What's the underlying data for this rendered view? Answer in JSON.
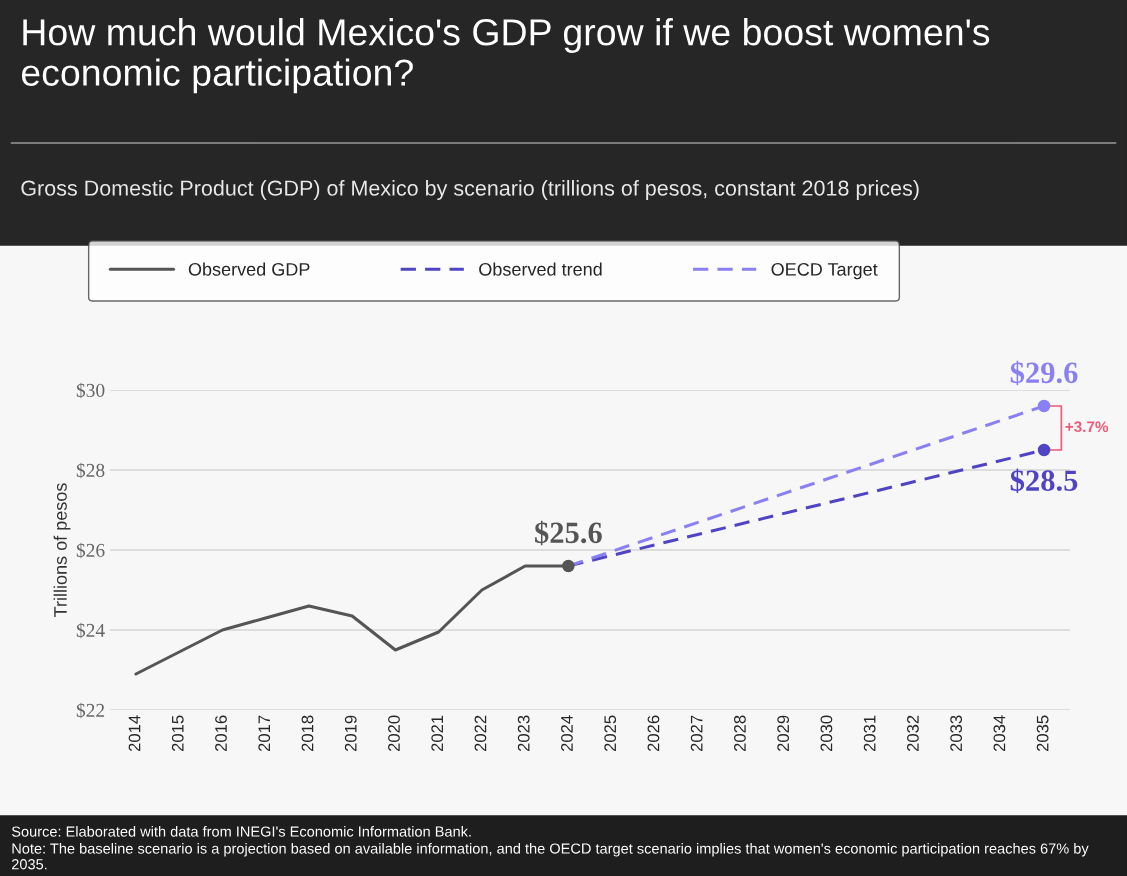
{
  "chart_data": {
    "type": "line",
    "title": "How much would Mexico's GDP grow if we boost women's economic participation?",
    "subtitle": "Gross Domestic Product (GDP) of Mexico by scenario (trillions of pesos, constant 2018 prices)",
    "ylabel": "Trillions of pesos",
    "series": [
      {
        "name": "Observed GDP",
        "color": "#555555",
        "line_style": "solid",
        "x": [
          2014,
          2015,
          2016,
          2017,
          2018,
          2019,
          2020,
          2021,
          2022,
          2023,
          2024
        ],
        "values": [
          22.9,
          23.45,
          24.0,
          24.3,
          24.6,
          24.35,
          23.5,
          23.95,
          25.0,
          25.6,
          25.6
        ],
        "value_labels": [
          null,
          null,
          null,
          null,
          null,
          null,
          null,
          null,
          null,
          null,
          "$25.6"
        ]
      },
      {
        "name": "Observed trend",
        "color": "#4f45c4",
        "line_style": "dashed",
        "x": [
          2024,
          2035
        ],
        "values": [
          25.6,
          28.5
        ],
        "value_labels": [
          null,
          "$28.5"
        ]
      },
      {
        "name": "OECD Target",
        "color": "#8a80f5",
        "line_style": "dashed",
        "x": [
          2024,
          2035
        ],
        "values": [
          25.6,
          29.6
        ],
        "value_labels": [
          null,
          "$29.6"
        ]
      }
    ],
    "xlim": [
      2013.4,
      2035.6
    ],
    "xticks": [
      2014,
      2015,
      2016,
      2017,
      2018,
      2019,
      2020,
      2021,
      2022,
      2023,
      2024,
      2025,
      2026,
      2027,
      2028,
      2029,
      2030,
      2031,
      2032,
      2033,
      2034,
      2035
    ],
    "ylim": [
      22,
      30
    ],
    "yticks": [
      {
        "value": 22,
        "label": "$22"
      },
      {
        "value": 24,
        "label": "$24"
      },
      {
        "value": 26,
        "label": "$26"
      },
      {
        "value": 28,
        "label": "$28"
      },
      {
        "value": 30,
        "label": "$30"
      }
    ],
    "grid": "y",
    "legend": "top",
    "annotations": [
      "+3.7%",
      "Source: Elaborated with data from INEGI's Economic Information Bank.",
      "Note: The baseline scenario is a projection based on available information, and the OECD target scenario implies that women's economic participation reaches 67% by 2035."
    ]
  }
}
